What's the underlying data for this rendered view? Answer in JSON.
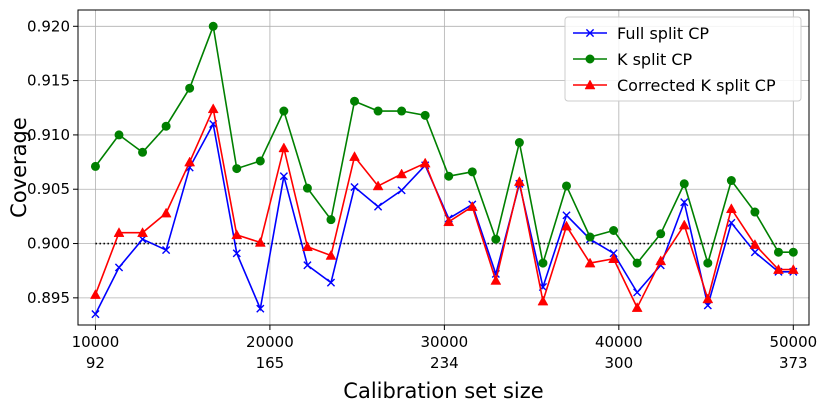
{
  "chart_data": {
    "type": "line",
    "xlabel": "Calibration set size",
    "ylabel": "Coverage",
    "xlim": [
      9000,
      50900
    ],
    "ylim": [
      0.8925,
      0.9215
    ],
    "grid": true,
    "legend_position": "top-right",
    "x": [
      10000,
      11350,
      12700,
      14050,
      15400,
      16750,
      18100,
      19450,
      20800,
      22150,
      23500,
      24850,
      26200,
      27550,
      28900,
      30250,
      31600,
      32950,
      34300,
      35650,
      37000,
      38350,
      39700,
      41050,
      42400,
      43750,
      45100,
      46450,
      47800,
      49150,
      50000
    ],
    "x_ticks": [
      10000,
      20000,
      30000,
      40000,
      50000
    ],
    "x_tick_labels": [
      "10000",
      "20000",
      "30000",
      "40000",
      "50000"
    ],
    "x_secondary_tick_labels": [
      "92",
      "165",
      "234",
      "300",
      "373"
    ],
    "y_ticks": [
      0.895,
      0.9,
      0.905,
      0.91,
      0.915,
      0.92
    ],
    "y_tick_labels": [
      "0.895",
      "0.900",
      "0.905",
      "0.910",
      "0.915",
      "0.920"
    ],
    "reference_line": {
      "y": 0.9,
      "style": "dotted",
      "color": "#000000"
    },
    "series": [
      {
        "name": "Full split CP",
        "color": "#0000ff",
        "marker": "x",
        "values": [
          0.8935,
          0.8978,
          0.9004,
          0.8994,
          0.907,
          0.911,
          0.8991,
          0.894,
          0.9062,
          0.898,
          0.8964,
          0.9052,
          0.9034,
          0.9049,
          0.9072,
          0.9023,
          0.9036,
          0.8972,
          0.9055,
          0.896,
          0.9026,
          0.9004,
          0.8991,
          0.8955,
          0.898,
          0.9038,
          0.8943,
          0.9019,
          0.8992,
          0.8974,
          0.8974
        ]
      },
      {
        "name": "K split CP",
        "color": "#008000",
        "marker": "o",
        "values": [
          0.9071,
          0.91,
          0.9084,
          0.9108,
          0.9143,
          0.92,
          0.9069,
          0.9076,
          0.9122,
          0.9051,
          0.9022,
          0.9131,
          0.9122,
          0.9122,
          0.9118,
          0.9062,
          0.9066,
          0.9004,
          0.9093,
          0.8982,
          0.9053,
          0.9006,
          0.9012,
          0.8982,
          0.9009,
          0.9055,
          0.8982,
          0.9058,
          0.9029,
          0.8992,
          0.8992
        ]
      },
      {
        "name": "Corrected K split CP",
        "color": "#ff0000",
        "marker": "^",
        "values": [
          0.8953,
          0.901,
          0.901,
          0.9028,
          0.9075,
          0.9124,
          0.9008,
          0.9001,
          0.9088,
          0.8997,
          0.8989,
          0.908,
          0.9053,
          0.9064,
          0.9074,
          0.902,
          0.9034,
          0.8966,
          0.9057,
          0.8947,
          0.9016,
          0.8982,
          0.8986,
          0.8941,
          0.8984,
          0.9017,
          0.8949,
          0.9032,
          0.8999,
          0.8976,
          0.8976
        ]
      }
    ]
  }
}
